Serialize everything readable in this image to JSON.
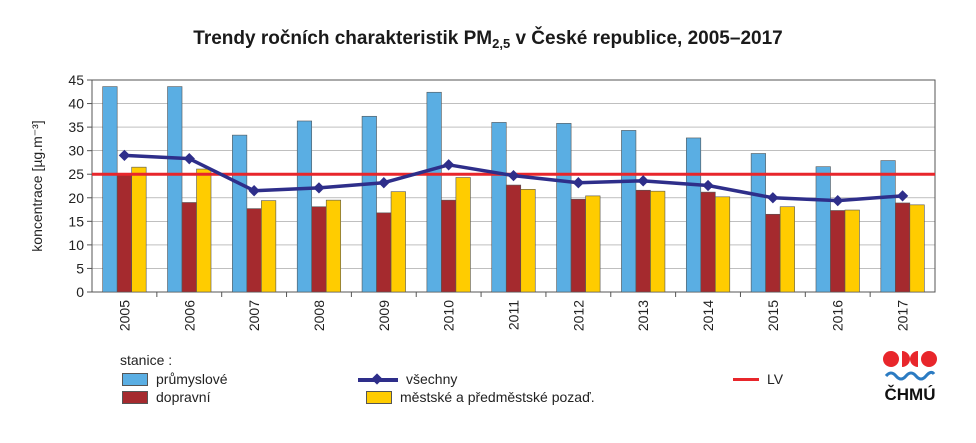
{
  "title_main": "Trendy ročních charakteristik PM",
  "title_sub": "2,5",
  "title_rest": " v České republice, 2005–2017",
  "colors": {
    "prumyslove": "#5aaee3",
    "dopravni": "#a52a2e",
    "mestske": "#ffcc00",
    "vsechny": "#2e2e8a",
    "lv": "#e8262b",
    "axis": "#555555",
    "grid": "#999999"
  },
  "legend": {
    "heading": "stanice :",
    "prumyslove": "průmyslové",
    "dopravni": "dopravní",
    "vsechny": "všechny",
    "mestske": "městské a předměstské pozaď.",
    "lv": "LV"
  },
  "logo": {
    "text": "ČHMÚ",
    "icon": "chmu-logo-icon"
  },
  "chart_data": {
    "type": "bar",
    "ylabel": "koncentrace [µg.m⁻³]",
    "ylim": [
      0,
      45
    ],
    "yticks": [
      0,
      5,
      10,
      15,
      20,
      25,
      30,
      35,
      40,
      45
    ],
    "categories": [
      "2005",
      "2006",
      "2007",
      "2008",
      "2009",
      "2010",
      "2011",
      "2012",
      "2013",
      "2014",
      "2015",
      "2016",
      "2017"
    ],
    "series": [
      {
        "name": "průmyslové",
        "values": [
          43.6,
          43.6,
          33.3,
          36.3,
          37.3,
          42.4,
          36.0,
          35.8,
          34.3,
          32.7,
          29.4,
          26.6,
          27.9
        ]
      },
      {
        "name": "dopravní",
        "values": [
          24.9,
          19.0,
          17.7,
          18.1,
          16.8,
          19.5,
          22.7,
          19.7,
          21.6,
          21.2,
          16.5,
          17.3,
          18.9
        ]
      },
      {
        "name": "městské a předměstské pozaď.",
        "values": [
          26.5,
          26.1,
          19.4,
          19.5,
          21.3,
          24.3,
          21.8,
          20.4,
          21.4,
          20.2,
          18.1,
          17.4,
          18.5
        ]
      }
    ],
    "line": {
      "name": "všechny",
      "values": [
        29.0,
        28.3,
        21.5,
        22.1,
        23.2,
        27.0,
        24.7,
        23.2,
        23.6,
        22.6,
        20.0,
        19.4,
        20.4
      ]
    },
    "limit": {
      "name": "LV",
      "value": 25
    }
  }
}
